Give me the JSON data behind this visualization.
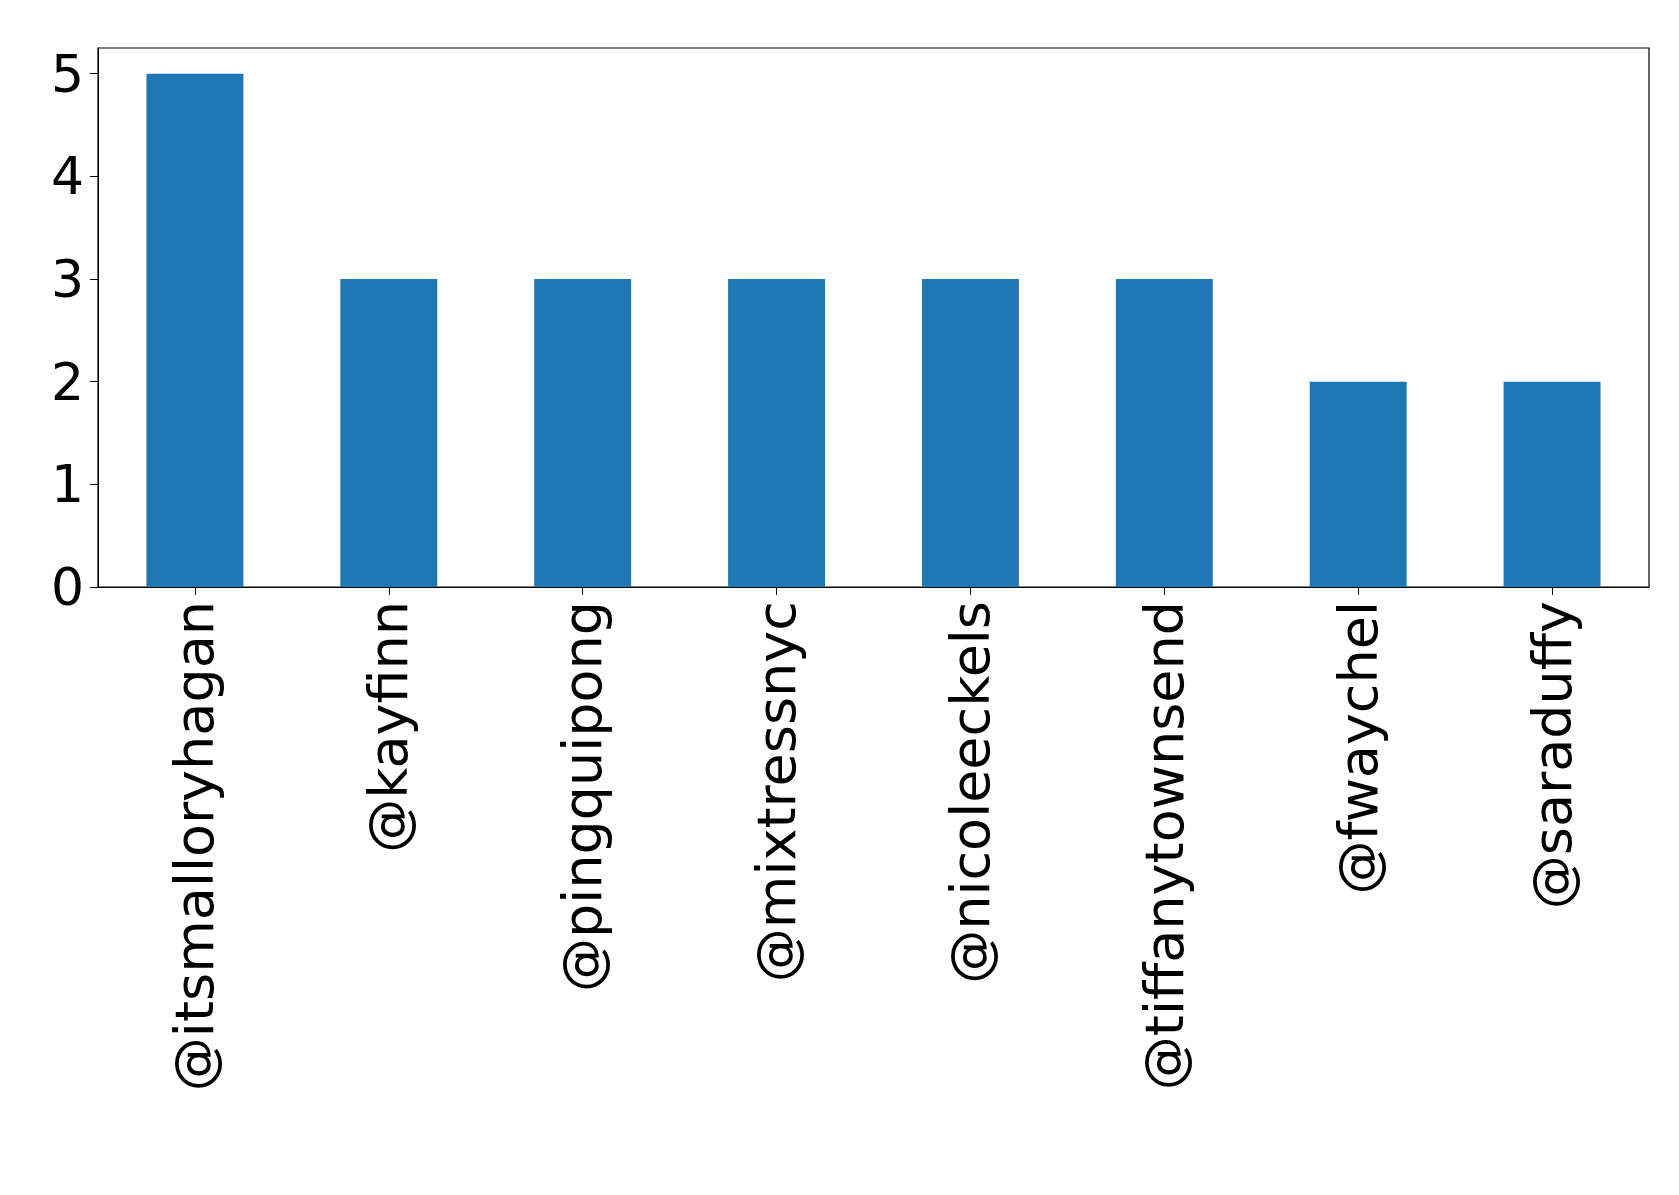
{
  "chart_data": {
    "type": "bar",
    "categories": [
      "@itsmalloryhagan",
      "@kayfinn",
      "@pingquipong",
      "@mixtressnyc",
      "@nicoleeckels",
      "@tiffanytownsend",
      "@fwaychel",
      "@saraduffy"
    ],
    "values": [
      5,
      3,
      3,
      3,
      3,
      3,
      2,
      2
    ],
    "color": "#1f77b4",
    "ylim": [
      0,
      5.25
    ],
    "yticks": [
      0,
      1,
      2,
      3,
      4,
      5
    ],
    "grid": false
  }
}
